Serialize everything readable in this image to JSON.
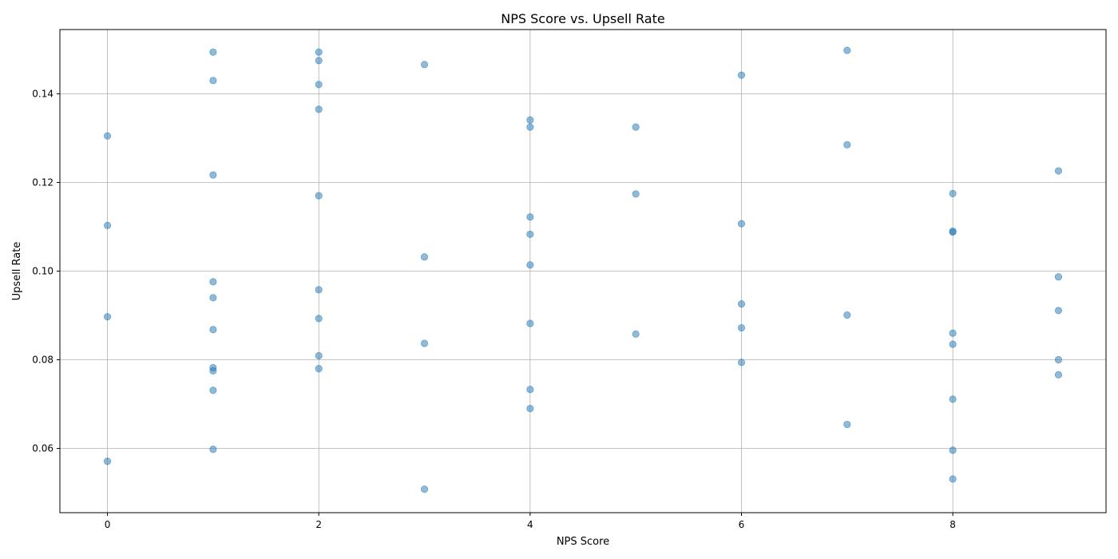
{
  "chart_data": {
    "type": "scatter",
    "title": "NPS Score vs. Upsell Rate",
    "xlabel": "NPS Score",
    "ylabel": "Upsell Rate",
    "xlim": [
      -0.45,
      9.45
    ],
    "ylim": [
      0.0455,
      0.1545
    ],
    "xticks": [
      0,
      2,
      4,
      6,
      8
    ],
    "xtick_labels": [
      "0",
      "2",
      "4",
      "6",
      "8"
    ],
    "yticks": [
      0.06,
      0.08,
      0.1,
      0.12,
      0.14
    ],
    "ytick_labels": [
      "0.06",
      "0.08",
      "0.10",
      "0.12",
      "0.14"
    ],
    "grid": true,
    "marker_color": "#1f77b4",
    "marker_alpha": 0.5,
    "series": [
      {
        "points": [
          [
            0,
            0.1305
          ],
          [
            0,
            0.1103
          ],
          [
            0,
            0.0897
          ],
          [
            0,
            0.0571
          ],
          [
            1,
            0.1494
          ],
          [
            1,
            0.143
          ],
          [
            1,
            0.1217
          ],
          [
            1,
            0.0976
          ],
          [
            1,
            0.094
          ],
          [
            1,
            0.0868
          ],
          [
            1,
            0.0782
          ],
          [
            1,
            0.0775
          ],
          [
            1,
            0.0731
          ],
          [
            1,
            0.0598
          ],
          [
            2,
            0.1494
          ],
          [
            2,
            0.1475
          ],
          [
            2,
            0.1421
          ],
          [
            2,
            0.1365
          ],
          [
            2,
            0.117
          ],
          [
            2,
            0.0958
          ],
          [
            2,
            0.0893
          ],
          [
            2,
            0.0809
          ],
          [
            2,
            0.078
          ],
          [
            3,
            0.1466
          ],
          [
            3,
            0.1032
          ],
          [
            3,
            0.0837
          ],
          [
            3,
            0.0508
          ],
          [
            4,
            0.1341
          ],
          [
            4,
            0.1325
          ],
          [
            4,
            0.1122
          ],
          [
            4,
            0.1083
          ],
          [
            4,
            0.1014
          ],
          [
            4,
            0.0882
          ],
          [
            4,
            0.0733
          ],
          [
            4,
            0.069
          ],
          [
            5,
            0.1325
          ],
          [
            5,
            0.1174
          ],
          [
            5,
            0.0858
          ],
          [
            6,
            0.1442
          ],
          [
            6,
            0.1107
          ],
          [
            6,
            0.0926
          ],
          [
            6,
            0.0872
          ],
          [
            6,
            0.0794
          ],
          [
            7,
            0.1498
          ],
          [
            7,
            0.1285
          ],
          [
            7,
            0.0901
          ],
          [
            7,
            0.0654
          ],
          [
            8,
            0.1175
          ],
          [
            8,
            0.109
          ],
          [
            8,
            0.1088
          ],
          [
            8,
            0.086
          ],
          [
            8,
            0.0835
          ],
          [
            8,
            0.0711
          ],
          [
            8,
            0.0596
          ],
          [
            8,
            0.0531
          ],
          [
            9,
            0.1226
          ],
          [
            9,
            0.0987
          ],
          [
            9,
            0.0911
          ],
          [
            9,
            0.08
          ],
          [
            9,
            0.0766
          ]
        ]
      }
    ]
  }
}
